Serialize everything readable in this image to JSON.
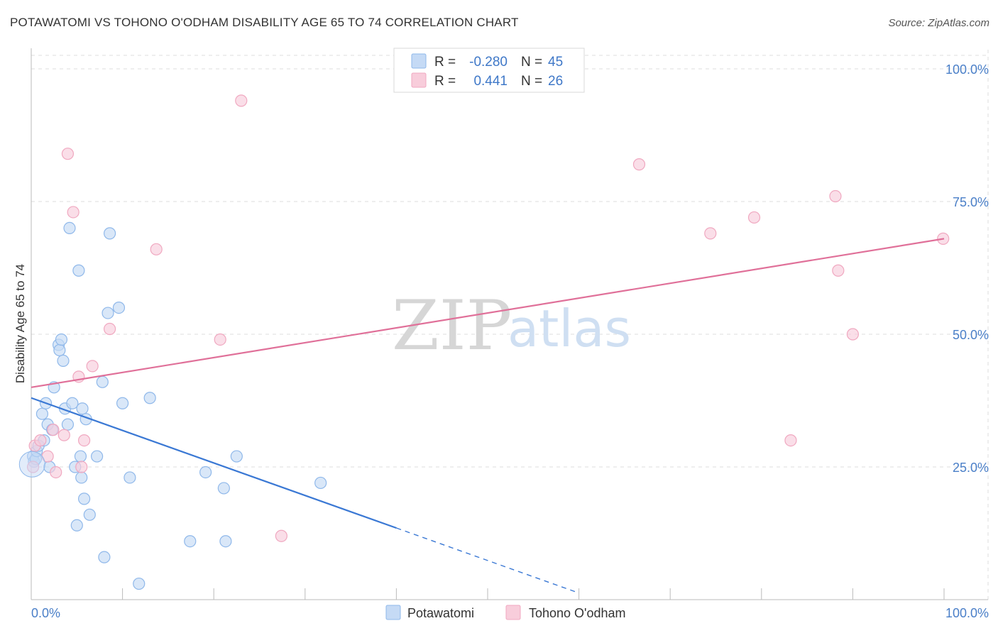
{
  "title": "POTAWATOMI VS TOHONO O'ODHAM DISABILITY AGE 65 TO 74 CORRELATION CHART",
  "source": "Source: ZipAtlas.com",
  "watermark": {
    "zip": "ZIP",
    "atlas": "atlas"
  },
  "chart_data": {
    "type": "scatter",
    "xlabel": "",
    "ylabel": "Disability Age 65 to 74",
    "xlim": [
      0,
      100
    ],
    "ylim": [
      0,
      100
    ],
    "x_tick_labels": [
      "0.0%",
      "100.0%"
    ],
    "y_tick_labels": [
      {
        "value": 100,
        "label": "100.0%"
      },
      {
        "value": 75,
        "label": "75.0%"
      },
      {
        "value": 50,
        "label": "50.0%"
      },
      {
        "value": 25,
        "label": "25.0%"
      }
    ],
    "grid": true,
    "legend_position": "top-center",
    "stats": [
      {
        "r_label": "R = ",
        "r": "-0.280",
        "n_label": "N = ",
        "n": "45"
      },
      {
        "r_label": "R = ",
        "r": "0.441",
        "n_label": "N = ",
        "n": "26"
      }
    ],
    "series": [
      {
        "name": "Potawatomi",
        "color": "#8fb8ea",
        "fill": "#c5daf5",
        "line_color": "#3a78d4",
        "trend": {
          "x0": 0,
          "y0": 38,
          "x1": 40,
          "y1": 13.5,
          "dash_to_x": 60
        },
        "points": [
          [
            0.2,
            27
          ],
          [
            0.3,
            26
          ],
          [
            0.5,
            26.5
          ],
          [
            0.6,
            28
          ],
          [
            0.8,
            29
          ],
          [
            1.2,
            35
          ],
          [
            1.4,
            30
          ],
          [
            1.6,
            37
          ],
          [
            1.8,
            33
          ],
          [
            2.0,
            25
          ],
          [
            2.3,
            32
          ],
          [
            2.5,
            40
          ],
          [
            3.0,
            48
          ],
          [
            3.1,
            47
          ],
          [
            3.3,
            49
          ],
          [
            3.5,
            45
          ],
          [
            3.7,
            36
          ],
          [
            4.0,
            33
          ],
          [
            4.2,
            70
          ],
          [
            4.5,
            37
          ],
          [
            4.8,
            25
          ],
          [
            5.0,
            14
          ],
          [
            5.2,
            62
          ],
          [
            5.4,
            27
          ],
          [
            5.6,
            36
          ],
          [
            5.8,
            19
          ],
          [
            6.0,
            34
          ],
          [
            6.4,
            16
          ],
          [
            7.2,
            27
          ],
          [
            7.8,
            41
          ],
          [
            8.0,
            8
          ],
          [
            8.4,
            54
          ],
          [
            8.6,
            69
          ],
          [
            9.6,
            55
          ],
          [
            10.0,
            37
          ],
          [
            10.8,
            23
          ],
          [
            11.8,
            3
          ],
          [
            13.0,
            38
          ],
          [
            17.4,
            11
          ],
          [
            19.1,
            24
          ],
          [
            21.1,
            21
          ],
          [
            21.3,
            11
          ],
          [
            22.5,
            27
          ],
          [
            31.7,
            22
          ],
          [
            5.5,
            23
          ]
        ]
      },
      {
        "name": "Tohono O'odham",
        "color": "#f0a8c0",
        "fill": "#f8cddb",
        "line_color": "#e07099",
        "trend": {
          "x0": 0,
          "y0": 40,
          "x1": 100,
          "y1": 68
        },
        "points": [
          [
            0.2,
            25
          ],
          [
            0.4,
            29
          ],
          [
            1.0,
            30
          ],
          [
            1.8,
            27
          ],
          [
            2.4,
            32
          ],
          [
            2.7,
            24
          ],
          [
            3.6,
            31
          ],
          [
            4.0,
            84
          ],
          [
            4.6,
            73
          ],
          [
            5.2,
            42
          ],
          [
            5.5,
            25
          ],
          [
            5.8,
            30
          ],
          [
            6.7,
            44
          ],
          [
            8.6,
            51
          ],
          [
            13.7,
            66
          ],
          [
            20.7,
            49
          ],
          [
            23.0,
            94
          ],
          [
            27.4,
            12
          ],
          [
            66.6,
            82
          ],
          [
            74.4,
            69
          ],
          [
            79.2,
            72
          ],
          [
            83.2,
            30
          ],
          [
            88.1,
            76
          ],
          [
            88.4,
            62
          ],
          [
            90.0,
            50
          ],
          [
            99.9,
            68
          ]
        ]
      }
    ]
  },
  "bottom_legend": [
    {
      "label": "Potawatomi"
    },
    {
      "label": "Tohono O'odham"
    }
  ]
}
